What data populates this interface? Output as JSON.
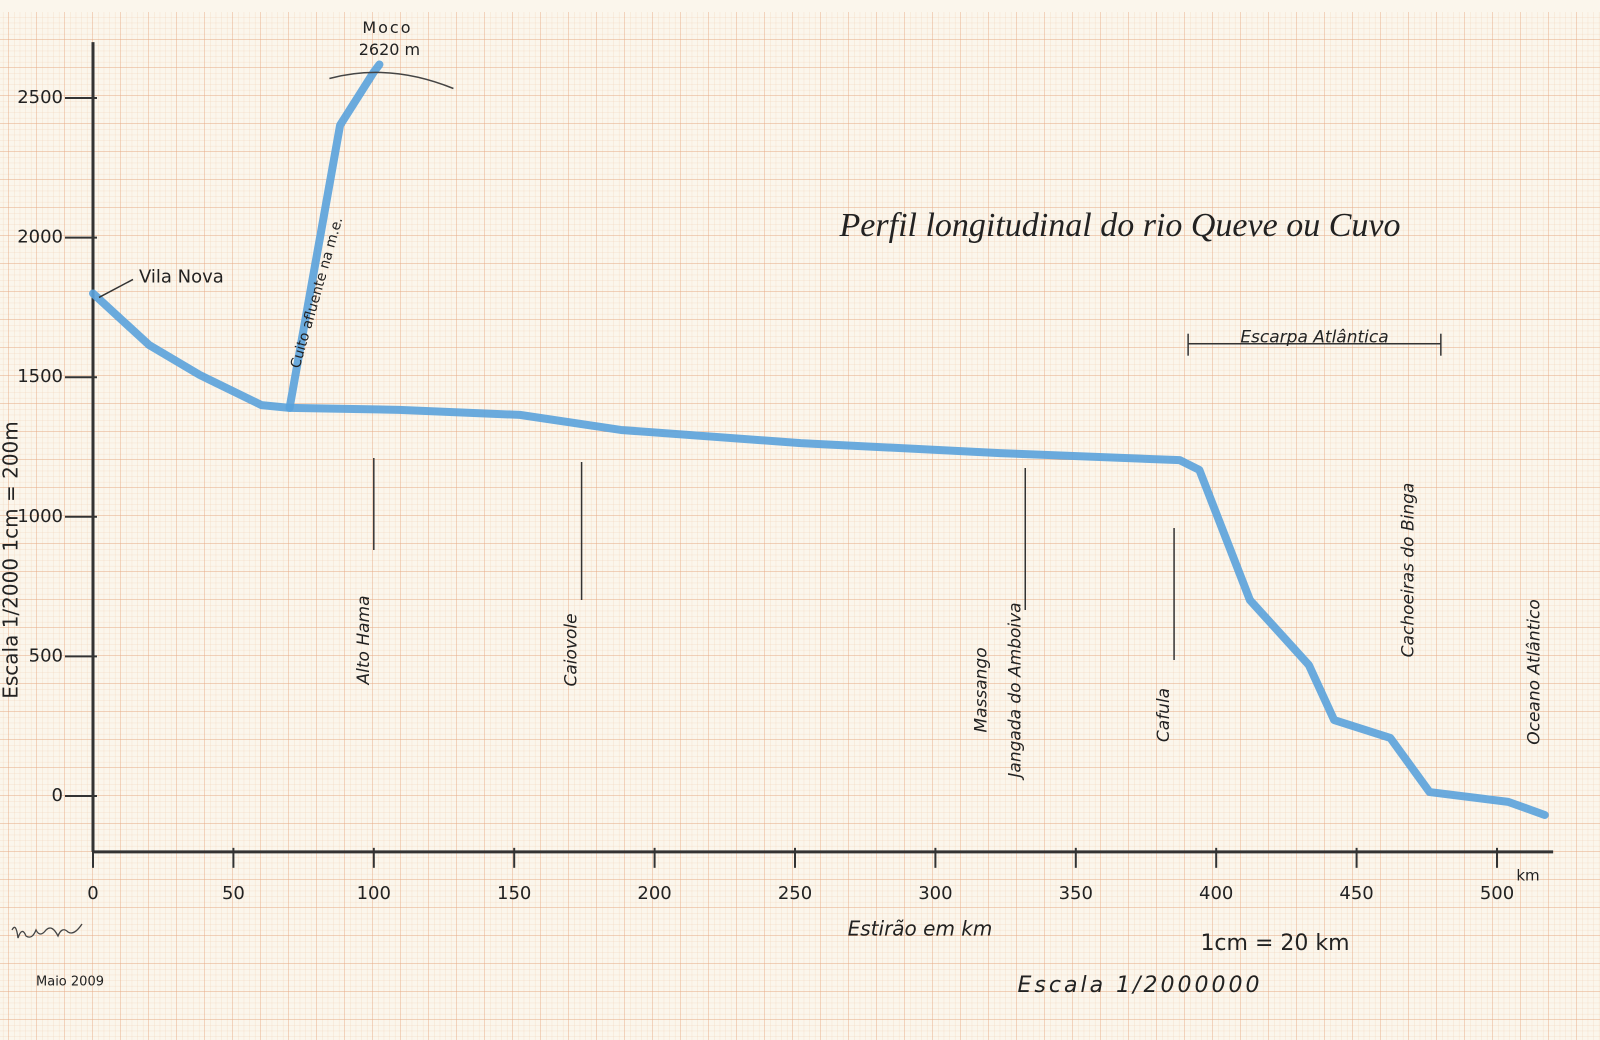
{
  "chart_data": {
    "type": "line",
    "title": "Perfil longitudinal do rio Queve ou Cuvo",
    "xlabel": "Estirão em km",
    "xunit": "km",
    "ylabel": "Escala 1/2000  1cm = 200m",
    "xlim": [
      0,
      520
    ],
    "ylim": [
      -200,
      2700
    ],
    "xticks": [
      0,
      50,
      100,
      150,
      200,
      250,
      300,
      350,
      400,
      450,
      500
    ],
    "yticks": [
      0,
      500,
      1000,
      1500,
      2000,
      2500
    ],
    "grid": true,
    "series": [
      {
        "name": "Queve",
        "color": "#5aa2dc",
        "x": [
          0,
          20,
          38,
          60,
          70,
          109,
          152,
          188,
          252,
          323,
          387,
          394,
          412,
          433,
          442,
          462,
          476,
          504,
          517
        ],
        "values": [
          1800,
          1615,
          1508,
          1400,
          1390,
          1383,
          1365,
          1311,
          1264,
          1228,
          1203,
          1168,
          702,
          469,
          272,
          208,
          14,
          -21,
          -68
        ]
      },
      {
        "name": "Cuito afluente na m.e.",
        "color": "#5aa2dc",
        "x": [
          70,
          88,
          100,
          102
        ],
        "values": [
          1390,
          2403,
          2593,
          2620
        ]
      }
    ],
    "annotations": [
      {
        "label": "Vila Nova",
        "x": 0,
        "y": 1800
      },
      {
        "label": "Moco",
        "x": 102,
        "y": 2620
      },
      {
        "label": "2620 m",
        "x": 102,
        "y": 2620
      }
    ],
    "escarpment": {
      "label": "Escarpa Atlântica",
      "x": [
        390,
        480
      ],
      "y": 1620
    },
    "places": [
      {
        "label": "Alto Hama",
        "x": 100
      },
      {
        "label": "Caiovole",
        "x": 174
      },
      {
        "label": "Massango",
        "x": 320
      },
      {
        "label": "Jangada do Amboiva",
        "x": 332
      },
      {
        "label": "Cafula",
        "x": 385
      },
      {
        "label": "Cachoeiras do Binga",
        "x": 472
      },
      {
        "label": "Oceano Atlântico",
        "x": 517
      }
    ],
    "scale_note": "1cm = 20 km",
    "scale": "Escala 1/2000000",
    "date": "Maio 2009"
  }
}
